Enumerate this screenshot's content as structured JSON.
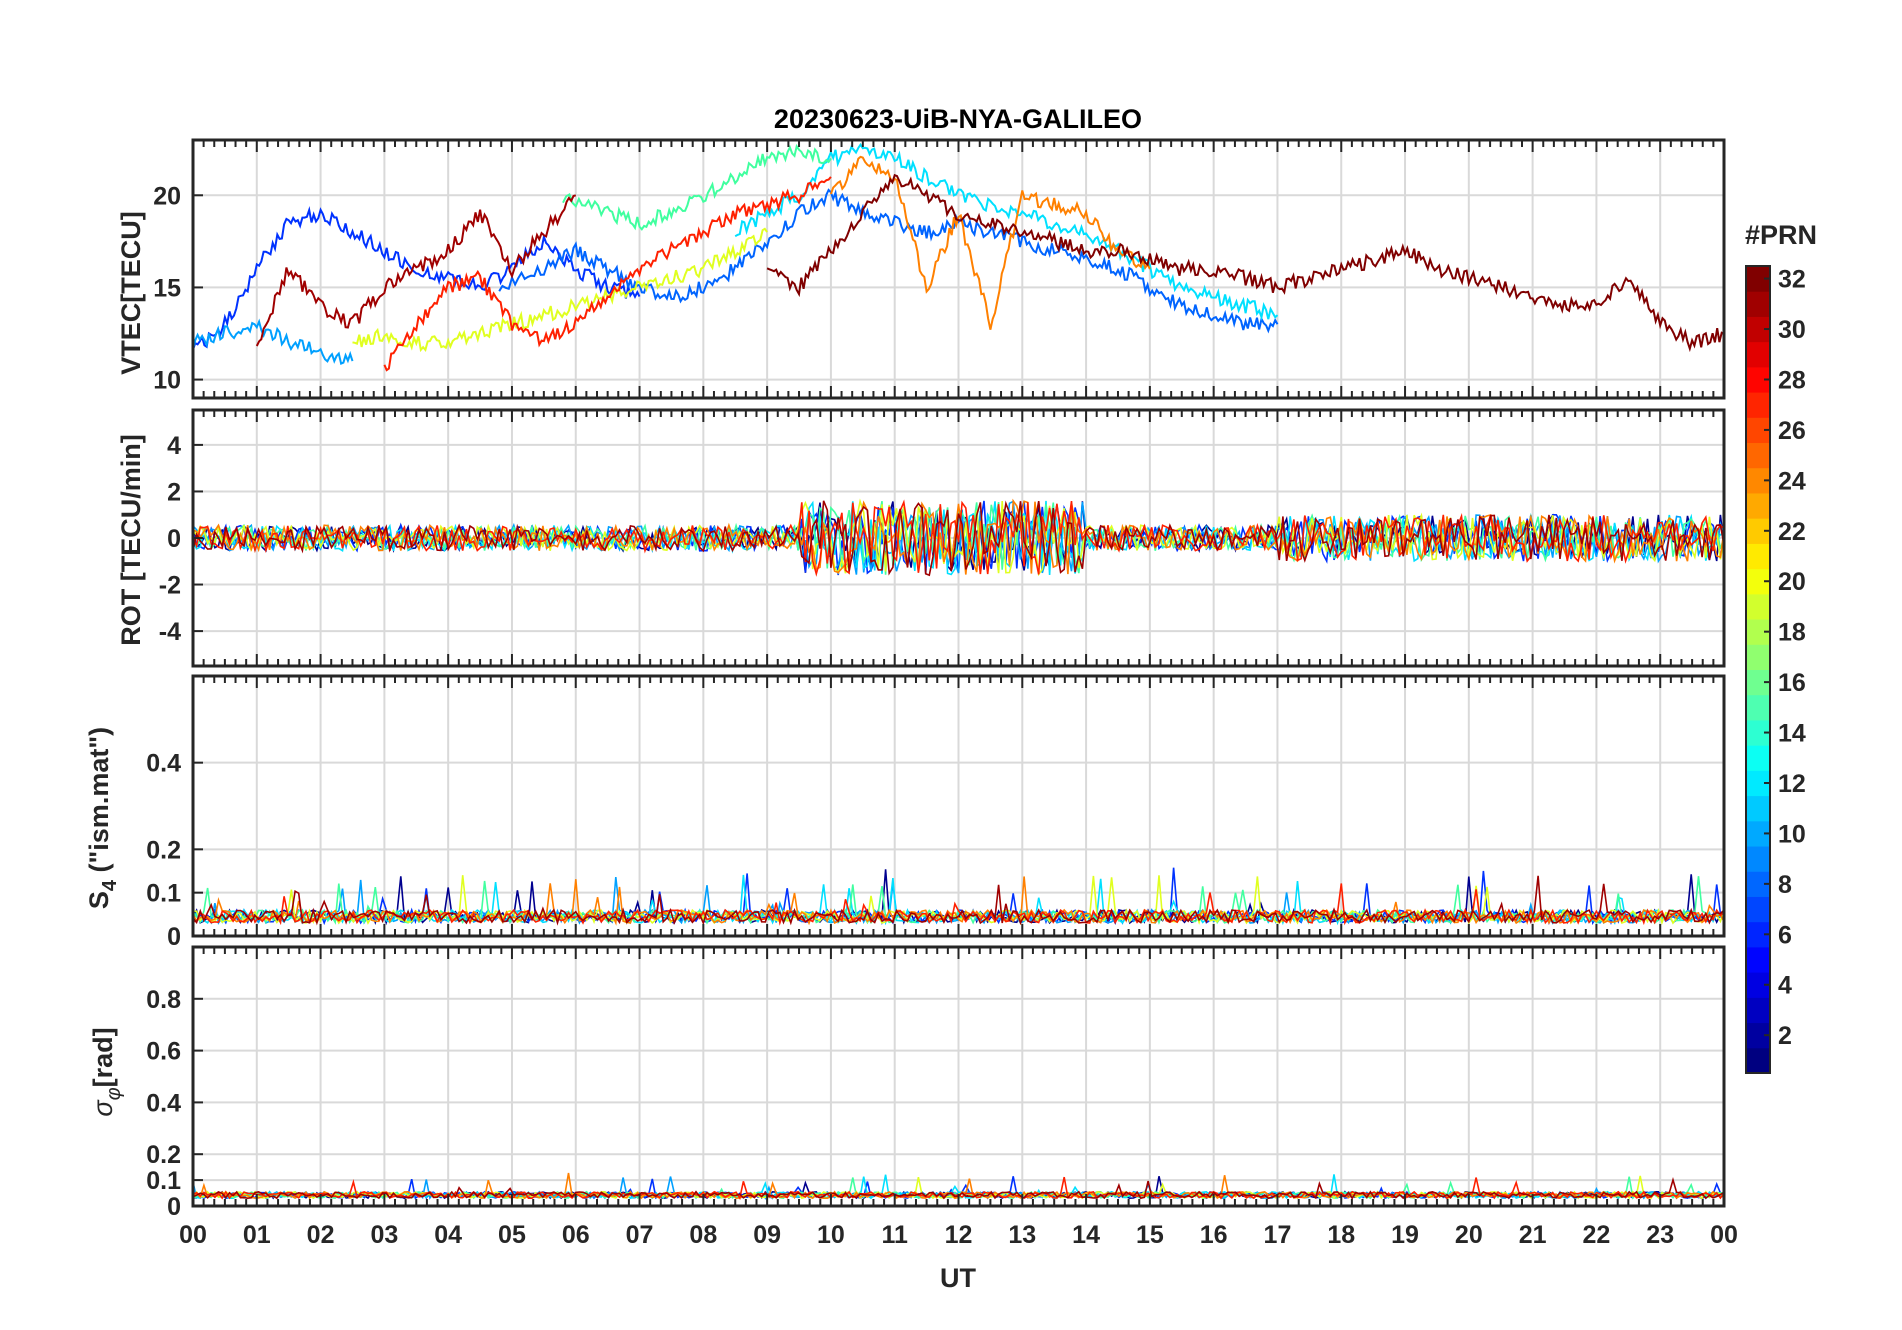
{
  "chart_data": {
    "type": "line",
    "title": "20230623-UiB-NYA-GALILEO",
    "xlabel": "UT",
    "x_tick_labels": [
      "00",
      "01",
      "02",
      "03",
      "04",
      "05",
      "06",
      "07",
      "08",
      "09",
      "10",
      "11",
      "12",
      "13",
      "14",
      "15",
      "16",
      "17",
      "18",
      "19",
      "20",
      "21",
      "22",
      "23",
      "00"
    ],
    "xlim_hours": [
      0,
      24
    ],
    "grid": true,
    "colorbar": {
      "label": "#PRN",
      "range": [
        1,
        32
      ],
      "tick_labels": [
        "2",
        "4",
        "6",
        "8",
        "10",
        "12",
        "14",
        "16",
        "18",
        "20",
        "22",
        "24",
        "26",
        "28",
        "30",
        "32"
      ],
      "colormap": "jet"
    },
    "panels": [
      {
        "ylabel": "VTEC[TECU]",
        "ylim": [
          9,
          23
        ],
        "y_ticks": [
          10,
          15,
          20
        ],
        "series": [
          {
            "prn": 3,
            "color": "#0032ff",
            "x": [
              0,
              0.5,
              1,
              1.5,
              2,
              2.5,
              3,
              3.5,
              4,
              4.5,
              5,
              5.5,
              6,
              6.5,
              7
            ],
            "y": [
              11.5,
              13,
              16,
              18.5,
              19,
              18,
              17,
              16,
              15.5,
              15,
              16,
              17.5,
              16,
              15,
              14.5
            ]
          },
          {
            "prn": 5,
            "color": "#0064ff",
            "x": [
              4.8,
              5.5,
              6,
              6.5,
              7,
              7.5,
              8,
              8.5,
              9,
              9.5,
              10,
              10.5,
              11,
              11.5,
              12,
              12.5,
              13,
              13.5,
              14,
              14.5,
              15,
              15.5,
              16,
              16.5,
              17
            ],
            "y": [
              15,
              16,
              17,
              16,
              15,
              14.5,
              15,
              16,
              17.5,
              19,
              20,
              19,
              18.5,
              18,
              18.5,
              18,
              17.5,
              17,
              16.5,
              16,
              15,
              14,
              13.5,
              13,
              13
            ]
          },
          {
            "prn": 9,
            "color": "#00a0ff",
            "x": [
              0,
              0.5,
              1,
              1.5,
              2,
              2.5
            ],
            "y": [
              12,
              12.5,
              13,
              12,
              11.5,
              11
            ]
          },
          {
            "prn": 12,
            "color": "#00e0ff",
            "x": [
              8.5,
              9,
              9.5,
              10,
              10.5,
              11,
              11.5,
              12,
              12.5,
              13,
              13.5,
              14,
              14.5,
              15,
              15.5,
              16,
              16.5,
              17
            ],
            "y": [
              18,
              19,
              20,
              22,
              22.5,
              22,
              21,
              20,
              19.5,
              19,
              18.5,
              18,
              17,
              16,
              15,
              14.5,
              14,
              13.5
            ]
          },
          {
            "prn": 16,
            "color": "#40ff9f",
            "x": [
              5.8,
              6.5,
              7,
              7.5,
              8,
              8.5,
              9,
              9.5,
              10
            ],
            "y": [
              20,
              19,
              18.5,
              19,
              20,
              21,
              22,
              22.5,
              22
            ]
          },
          {
            "prn": 20,
            "color": "#e0ff20",
            "x": [
              2.5,
              3,
              3.5,
              4,
              4.5,
              5,
              5.5,
              6,
              6.5,
              7,
              7.5,
              8,
              8.5,
              9
            ],
            "y": [
              12,
              12.5,
              12,
              12,
              12.5,
              13,
              13.5,
              14,
              14.5,
              15,
              15.5,
              16,
              17,
              18
            ]
          },
          {
            "prn": 24,
            "color": "#ff8000",
            "x": [
              10,
              10.5,
              11,
              11.5,
              12,
              12.5,
              13,
              13.5,
              14,
              14.5,
              15
            ],
            "y": [
              20,
              22,
              21,
              15,
              19,
              13,
              20,
              19.5,
              19,
              17,
              16
            ]
          },
          {
            "prn": 27,
            "color": "#ff2000",
            "x": [
              3,
              3.5,
              4,
              4.5,
              5,
              5.5,
              6,
              6.5,
              7,
              7.5,
              8,
              8.5,
              9,
              9.5,
              10
            ],
            "y": [
              10.5,
              13,
              15,
              15.5,
              13,
              12,
              13,
              14.5,
              16,
              17,
              18,
              19,
              19.5,
              20,
              21
            ]
          },
          {
            "prn": 31,
            "color": "#a00000",
            "x": [
              1,
              1.5,
              2,
              2.5,
              3,
              3.5,
              4,
              4.5,
              5,
              5.5,
              6
            ],
            "y": [
              12,
              16,
              14,
              13,
              15,
              16,
              17,
              19,
              16,
              18,
              20
            ]
          },
          {
            "prn": 32,
            "color": "#800000",
            "x": [
              9,
              9.5,
              10,
              10.5,
              11,
              11.5,
              12,
              12.5,
              13,
              13.5,
              14,
              14.5,
              15,
              15.5,
              16,
              16.5,
              17,
              17.5,
              18,
              18.5,
              19,
              19.5,
              20,
              20.5,
              21,
              21.5,
              22,
              22.5,
              23,
              23.5,
              24
            ],
            "y": [
              16,
              15,
              17,
              19,
              21,
              20,
              19,
              18.5,
              18,
              17.5,
              17,
              17,
              16.5,
              16,
              16,
              15.5,
              15,
              15.5,
              16,
              16.5,
              17,
              16,
              15.5,
              15,
              14.5,
              14,
              14,
              15.5,
              13,
              12,
              12.5
            ]
          }
        ]
      },
      {
        "ylabel": "ROT [TECU/min]",
        "ylim": [
          -5.5,
          5.5
        ],
        "y_ticks": [
          -4,
          -2,
          0,
          2,
          4
        ]
      },
      {
        "ylabel": "S4 (\"ism.mat\")",
        "ylim": [
          0,
          0.6
        ],
        "y_ticks": [
          0,
          0.1,
          0.2,
          0.4
        ]
      },
      {
        "ylabel": "σφ [rad]",
        "ylim": [
          0,
          1.0
        ],
        "y_ticks": [
          0,
          0.1,
          0.2,
          0.4,
          0.6,
          0.8
        ]
      }
    ]
  },
  "labels": {
    "title": "20230623-UiB-NYA-GALILEO",
    "xlabel": "UT",
    "colorbar_label": "#PRN",
    "vtec_ylabel": "VTEC[TECU]",
    "rot_ylabel": "ROT [TECU/min]",
    "s4_ylabel_main": "S",
    "s4_ylabel_sub": "4",
    "s4_ylabel_rest": " (\"ism.mat\")",
    "sigma_ylabel_main": "σ",
    "sigma_ylabel_sub": "φ",
    "sigma_ylabel_rest": "[rad]"
  }
}
